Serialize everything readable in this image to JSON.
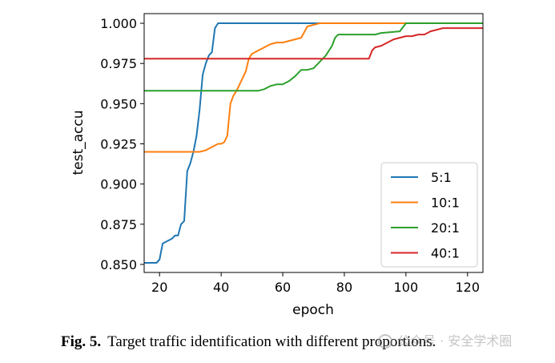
{
  "chart_data": {
    "type": "line",
    "xlabel": "epoch",
    "ylabel": "test_accu",
    "xlim": [
      15,
      125
    ],
    "ylim": [
      0.845,
      1.006
    ],
    "xticks": [
      20,
      40,
      60,
      80,
      100,
      120
    ],
    "yticks": [
      0.85,
      0.875,
      0.9,
      0.925,
      0.95,
      0.975,
      1.0
    ],
    "ytick_labels": [
      "0.850",
      "0.875",
      "0.900",
      "0.925",
      "0.950",
      "0.975",
      "1.000"
    ],
    "legend_position": "lower-right",
    "grid": false,
    "series": [
      {
        "name": "5:1",
        "color": "#1f77b4",
        "points": [
          [
            15,
            0.851
          ],
          [
            19,
            0.851
          ],
          [
            20,
            0.853
          ],
          [
            21,
            0.863
          ],
          [
            23,
            0.865
          ],
          [
            24,
            0.866
          ],
          [
            25,
            0.868
          ],
          [
            26,
            0.868
          ],
          [
            27,
            0.875
          ],
          [
            28,
            0.877
          ],
          [
            29,
            0.908
          ],
          [
            30,
            0.913
          ],
          [
            31,
            0.92
          ],
          [
            32,
            0.93
          ],
          [
            33,
            0.946
          ],
          [
            34,
            0.968
          ],
          [
            35,
            0.975
          ],
          [
            36,
            0.98
          ],
          [
            37,
            0.982
          ],
          [
            38,
            0.997
          ],
          [
            39,
            1.0
          ],
          [
            125,
            1.0
          ]
        ]
      },
      {
        "name": "10:1",
        "color": "#ff7f0e",
        "points": [
          [
            15,
            0.92
          ],
          [
            33,
            0.92
          ],
          [
            35,
            0.921
          ],
          [
            37,
            0.923
          ],
          [
            39,
            0.925
          ],
          [
            40,
            0.925
          ],
          [
            41,
            0.926
          ],
          [
            42,
            0.93
          ],
          [
            43,
            0.95
          ],
          [
            44,
            0.955
          ],
          [
            45,
            0.958
          ],
          [
            46,
            0.962
          ],
          [
            47,
            0.966
          ],
          [
            48,
            0.97
          ],
          [
            49,
            0.978
          ],
          [
            50,
            0.981
          ],
          [
            52,
            0.983
          ],
          [
            54,
            0.985
          ],
          [
            56,
            0.987
          ],
          [
            58,
            0.988
          ],
          [
            60,
            0.988
          ],
          [
            62,
            0.989
          ],
          [
            64,
            0.99
          ],
          [
            66,
            0.991
          ],
          [
            68,
            0.998
          ],
          [
            70,
            0.999
          ],
          [
            72,
            1.0
          ],
          [
            125,
            1.0
          ]
        ]
      },
      {
        "name": "20:1",
        "color": "#2ca02c",
        "points": [
          [
            15,
            0.958
          ],
          [
            52,
            0.958
          ],
          [
            54,
            0.959
          ],
          [
            56,
            0.961
          ],
          [
            58,
            0.962
          ],
          [
            60,
            0.962
          ],
          [
            62,
            0.964
          ],
          [
            64,
            0.967
          ],
          [
            66,
            0.971
          ],
          [
            68,
            0.971
          ],
          [
            70,
            0.972
          ],
          [
            72,
            0.976
          ],
          [
            74,
            0.98
          ],
          [
            76,
            0.986
          ],
          [
            77,
            0.991
          ],
          [
            78,
            0.993
          ],
          [
            80,
            0.993
          ],
          [
            90,
            0.993
          ],
          [
            92,
            0.994
          ],
          [
            98,
            0.995
          ],
          [
            100,
            1.0
          ],
          [
            125,
            1.0
          ]
        ]
      },
      {
        "name": "40:1",
        "color": "#d62728",
        "points": [
          [
            15,
            0.978
          ],
          [
            88,
            0.978
          ],
          [
            89,
            0.983
          ],
          [
            90,
            0.985
          ],
          [
            92,
            0.986
          ],
          [
            94,
            0.988
          ],
          [
            96,
            0.99
          ],
          [
            98,
            0.991
          ],
          [
            100,
            0.992
          ],
          [
            102,
            0.992
          ],
          [
            104,
            0.993
          ],
          [
            106,
            0.993
          ],
          [
            108,
            0.995
          ],
          [
            110,
            0.996
          ],
          [
            112,
            0.997
          ],
          [
            125,
            0.997
          ]
        ]
      }
    ]
  },
  "caption": {
    "label": "Fig. 5.",
    "text": "Target traffic identification with different proportions."
  },
  "watermark": {
    "text": "公众号 · 安全学术圈"
  }
}
